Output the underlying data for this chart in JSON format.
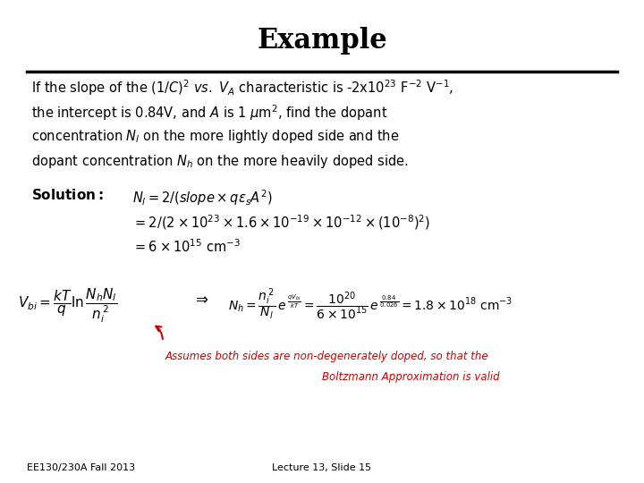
{
  "title": "Example",
  "background_color": "#ffffff",
  "title_fontsize": 22,
  "title_fontweight": "bold",
  "body_text_color": "#000000",
  "red_text_color": "#cc0000",
  "footer_left": "EE130/230A Fall 2013",
  "footer_right": "Lecture 13, Slide 15"
}
